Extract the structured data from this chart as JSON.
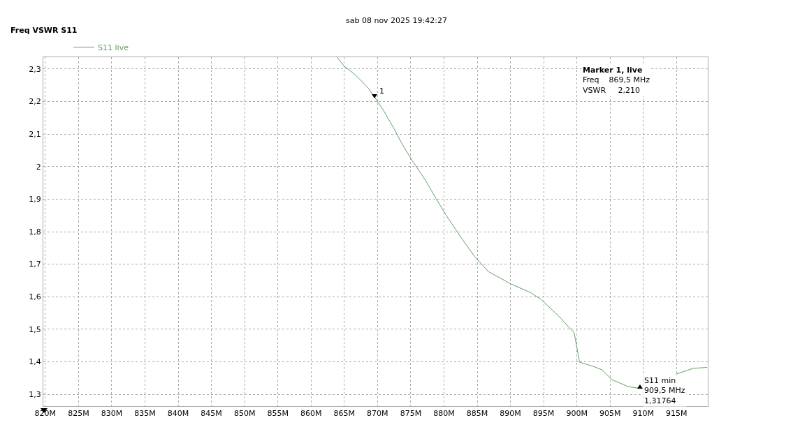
{
  "chart_data": {
    "type": "line",
    "subtitle": "sab 08 nov 2025 19:42:27",
    "ylabel": "Freq VSWR S11",
    "x": [
      863.9,
      865.0,
      866.6,
      868.5,
      869.6,
      871.0,
      872.5,
      873.6,
      875.2,
      877.3,
      878.8,
      880.4,
      882.5,
      884.6,
      886.7,
      888.6,
      889.9,
      893.0,
      894.6,
      897.2,
      899.6,
      900.4,
      902.5,
      903.8,
      905.3,
      907.7,
      909.6,
      912.0,
      914.9,
      917.5,
      919.6
    ],
    "series": [
      {
        "name": "S11 live",
        "color": "#5f9f5f",
        "values": [
          2.336,
          2.308,
          2.283,
          2.244,
          2.212,
          2.169,
          2.116,
          2.073,
          2.019,
          1.955,
          1.902,
          1.848,
          1.784,
          1.724,
          1.677,
          1.656,
          1.641,
          1.613,
          1.592,
          1.542,
          1.489,
          1.399,
          1.386,
          1.375,
          1.345,
          1.324,
          1.318,
          null,
          1.362,
          1.38,
          1.383
        ]
      }
    ],
    "xlim": [
      819.7,
      919.7
    ],
    "xticks": [
      {
        "value": 820,
        "label": "820M"
      },
      {
        "value": 825,
        "label": "825M"
      },
      {
        "value": 830,
        "label": "830M"
      },
      {
        "value": 835,
        "label": "835M"
      },
      {
        "value": 840,
        "label": "840M"
      },
      {
        "value": 845,
        "label": "845M"
      },
      {
        "value": 850,
        "label": "850M"
      },
      {
        "value": 855,
        "label": "855M"
      },
      {
        "value": 860,
        "label": "860M"
      },
      {
        "value": 865,
        "label": "865M"
      },
      {
        "value": 870,
        "label": "870M"
      },
      {
        "value": 875,
        "label": "875M"
      },
      {
        "value": 880,
        "label": "880M"
      },
      {
        "value": 885,
        "label": "885M"
      },
      {
        "value": 890,
        "label": "890M"
      },
      {
        "value": 895,
        "label": "895M"
      },
      {
        "value": 900,
        "label": "900M"
      },
      {
        "value": 905,
        "label": "905M"
      },
      {
        "value": 910,
        "label": "910M"
      },
      {
        "value": 915,
        "label": "915M"
      }
    ],
    "ylim": [
      1.264,
      2.336
    ],
    "yticks": [
      {
        "value": 1.3,
        "label": "1,3"
      },
      {
        "value": 1.4,
        "label": "1,4"
      },
      {
        "value": 1.5,
        "label": "1,5"
      },
      {
        "value": 1.6,
        "label": "1,6"
      },
      {
        "value": 1.7,
        "label": "1,7"
      },
      {
        "value": 1.8,
        "label": "1,8"
      },
      {
        "value": 1.9,
        "label": "1,9"
      },
      2,
      {
        "value": 2.1,
        "label": "2,1"
      },
      {
        "value": 2.2,
        "label": "2,2"
      },
      {
        "value": 2.3,
        "label": "2,3"
      }
    ],
    "grid": true,
    "legend": "top left",
    "marker": "none",
    "line_style": "solid",
    "annotations": [
      {
        "text": "1",
        "x": 869.5,
        "y": 2.21
      },
      {
        "text": "S11 min\n909,5 MHz\n1,31764",
        "x": 909.5,
        "y": 1.31764
      },
      "Marker 1, live\nFreq    869,5 MHz\nVSWR     2,210"
    ]
  }
}
